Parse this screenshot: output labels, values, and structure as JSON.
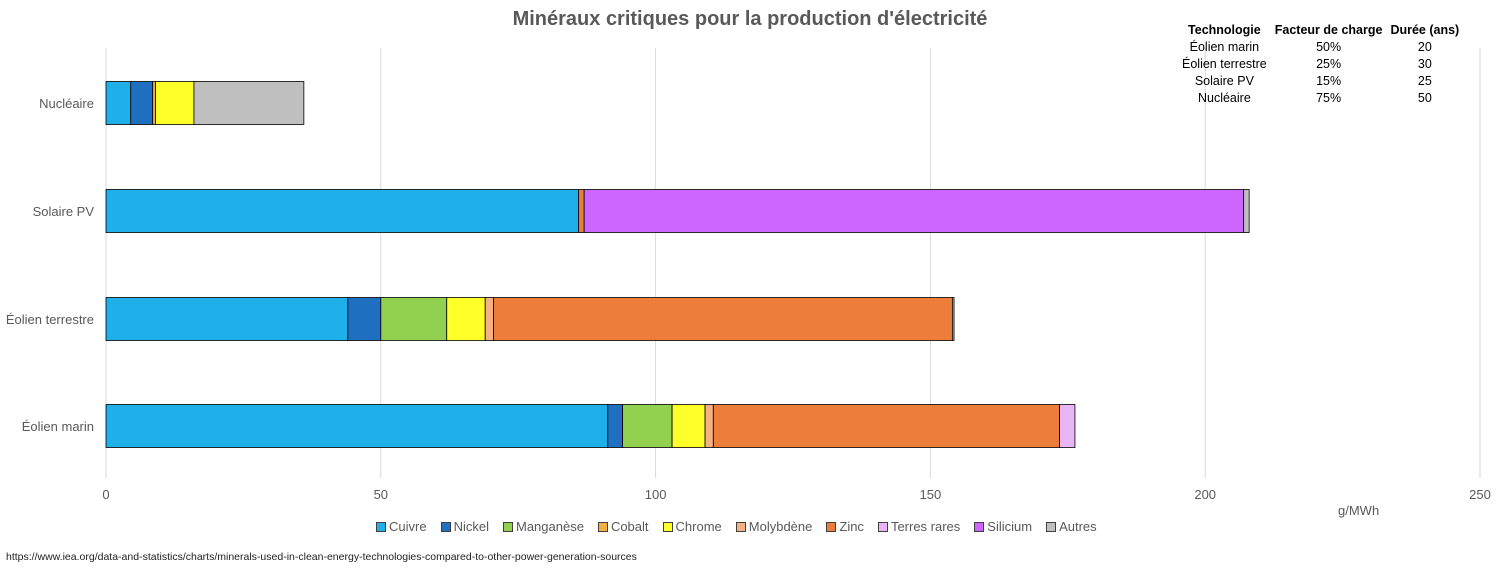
{
  "chart_data": {
    "type": "bar",
    "orientation": "horizontal",
    "stacked": true,
    "title": "Minéraux critiques pour la production d'électricité",
    "unit_label": "g/MWh",
    "categories": [
      "Nucléaire",
      "Solaire PV",
      "Éolien terrestre",
      "Éolien marin"
    ],
    "xlim": [
      0,
      250
    ],
    "xticks": [
      0,
      50,
      100,
      150,
      200,
      250
    ],
    "grid": "vertical",
    "legend_position": "bottom",
    "series": [
      {
        "name": "Cuivre",
        "color": "#1FB0EA",
        "values": [
          4.5,
          86,
          44,
          91.3
        ]
      },
      {
        "name": "Nickel",
        "color": "#1F70C1",
        "values": [
          4,
          0,
          6,
          2.7
        ]
      },
      {
        "name": "Manganèse",
        "color": "#92D050",
        "values": [
          0,
          0,
          12,
          9
        ]
      },
      {
        "name": "Cobalt",
        "color": "#F5B042",
        "values": [
          0.5,
          0,
          0,
          0
        ]
      },
      {
        "name": "Chrome",
        "color": "#FFFF29",
        "values": [
          7,
          0,
          7,
          6
        ]
      },
      {
        "name": "Molybdène",
        "color": "#F4B183",
        "values": [
          0,
          0,
          1.5,
          1.5
        ]
      },
      {
        "name": "Zinc",
        "color": "#ED7D3A",
        "values": [
          0,
          1,
          83.5,
          63
        ]
      },
      {
        "name": "Terres rares",
        "color": "#E8B5F7",
        "values": [
          0,
          0,
          0,
          2.8
        ]
      },
      {
        "name": "Silicium",
        "color": "#CC66FF",
        "values": [
          0,
          120,
          0,
          0
        ]
      },
      {
        "name": "Autres",
        "color": "#BFBFBF",
        "values": [
          20,
          1,
          0.3,
          0
        ]
      }
    ]
  },
  "info_table": {
    "headers": [
      "Technologie",
      "Facteur de charge",
      "Durée (ans)"
    ],
    "rows": [
      [
        "Éolien marin",
        "50%",
        "20"
      ],
      [
        "Éolien terrestre",
        "25%",
        "30"
      ],
      [
        "Solaire PV",
        "15%",
        "25"
      ],
      [
        "Nucléaire",
        "75%",
        "50"
      ]
    ]
  },
  "source": "https://www.iea.org/data-and-statistics/charts/minerals-used-in-clean-energy-technologies-compared-to-other-power-generation-sources"
}
